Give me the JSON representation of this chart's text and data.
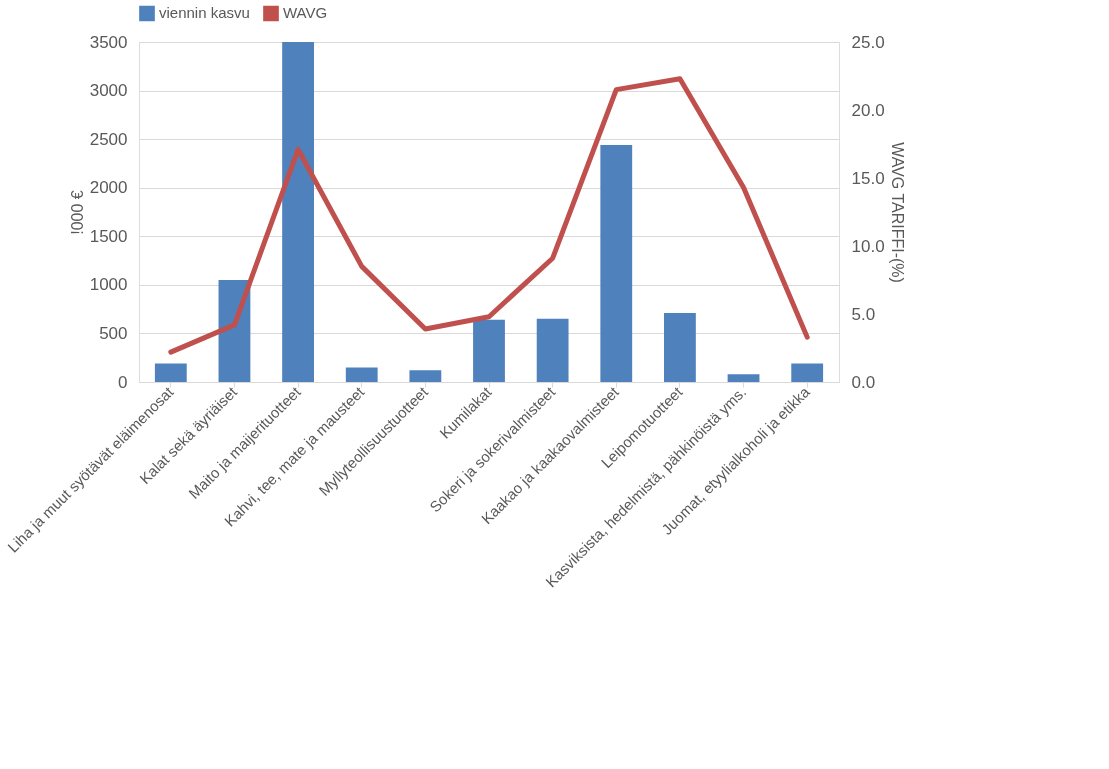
{
  "chart_data": {
    "type": "bar",
    "categories": [
      "Liha ja muut syötävät eläimenosat",
      "Kalat sekä äyriäiset",
      "Maito ja maijerituotteet",
      "Kahvi, tee, mate ja mausteet",
      "Myllyteollisuustuotteet",
      "Kumilakat",
      "Sokeri ja sokerivalmisteet",
      "Kaakao ja kaakaovalmisteet",
      "Leipomotuotteet",
      "Kasviksista, hedelmistä, pähkinöistä yms.",
      "Juomat, etyylialkoholi ja etikka"
    ],
    "series": [
      {
        "name": "viennin kasvu",
        "color": "#4f81bd",
        "values": [
          190,
          1050,
          3500,
          150,
          120,
          640,
          650,
          2440,
          710,
          80,
          190
        ]
      },
      {
        "name": "WAVG",
        "type": "line",
        "axis": "y2",
        "color": "#c0504d",
        "values": [
          2.2,
          4.2,
          17.1,
          8.5,
          3.9,
          4.8,
          9.1,
          21.5,
          22.3,
          14.3,
          3.3
        ]
      }
    ],
    "ylabel": "!000 €",
    "y2label": "WAVG TARIFFI-(%)",
    "ylim": [
      0,
      3500
    ],
    "yticks": [
      0,
      500,
      1000,
      1500,
      2000,
      2500,
      3000,
      3500
    ],
    "y2lim": [
      0,
      25
    ],
    "y2ticks": [
      {
        "value": 0,
        "label": "0.0"
      },
      {
        "value": 5,
        "label": "5.0"
      },
      {
        "value": 10,
        "label": "10.0"
      },
      {
        "value": 15,
        "label": "15.0"
      },
      {
        "value": 20,
        "label": "20.0"
      },
      {
        "value": 25,
        "label": "25.0"
      }
    ],
    "grid": "y",
    "legend": "top",
    "marker": "none",
    "line_style": "solid"
  }
}
